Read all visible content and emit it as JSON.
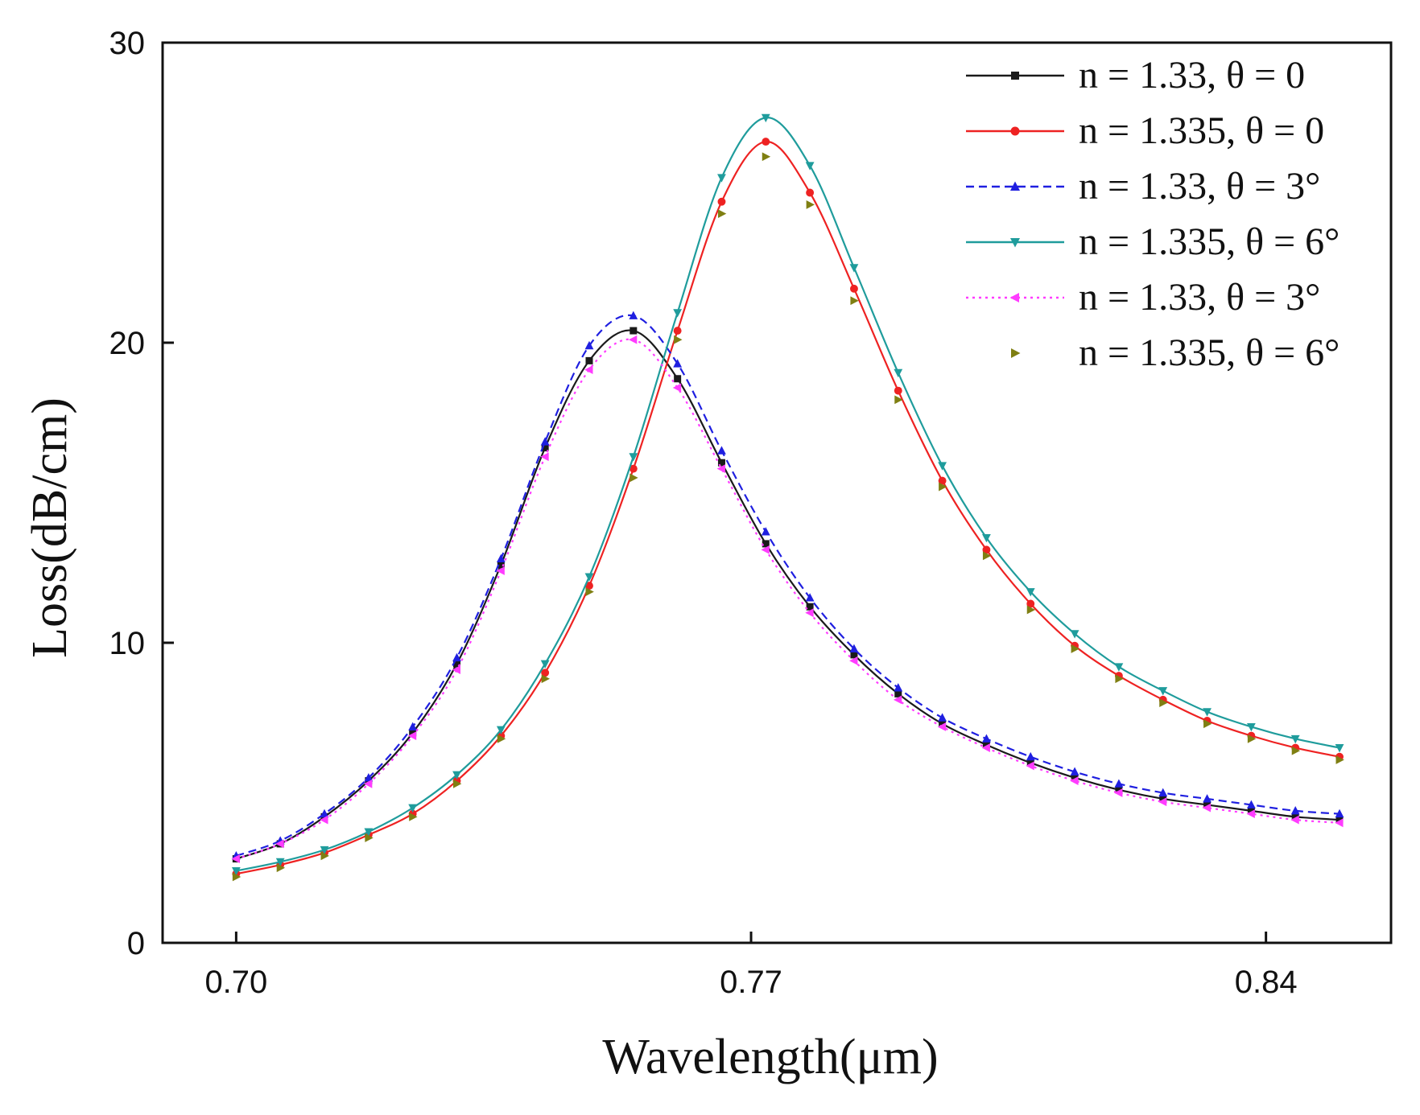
{
  "chart_data": {
    "type": "line",
    "title": "",
    "xlabel": "Wavelength(μm)",
    "ylabel": "Loss(dB/cm)",
    "xlim": [
      0.69,
      0.857
    ],
    "ylim": [
      0,
      30
    ],
    "x_ticks": [
      0.7,
      0.77,
      0.84
    ],
    "x_tick_labels": [
      "0.70",
      "0.77",
      "0.84"
    ],
    "y_ticks": [
      0,
      10,
      20,
      30
    ],
    "y_tick_labels": [
      "0",
      "10",
      "20",
      "30"
    ],
    "grid": false,
    "legend_position": "top-right",
    "x": [
      0.7,
      0.706,
      0.712,
      0.718,
      0.724,
      0.73,
      0.736,
      0.742,
      0.748,
      0.754,
      0.76,
      0.766,
      0.772,
      0.778,
      0.784,
      0.79,
      0.796,
      0.802,
      0.808,
      0.814,
      0.82,
      0.826,
      0.832,
      0.838,
      0.844,
      0.85
    ],
    "series": [
      {
        "name": "n = 1.33, θ = 0",
        "color": "#1a1a1a",
        "marker": "square",
        "line": "solid",
        "values": [
          2.8,
          3.3,
          4.2,
          5.4,
          7.0,
          9.3,
          12.6,
          16.5,
          19.4,
          20.4,
          18.8,
          16.0,
          13.3,
          11.2,
          9.6,
          8.3,
          7.3,
          6.6,
          6.0,
          5.5,
          5.1,
          4.8,
          4.6,
          4.4,
          4.2,
          4.1
        ]
      },
      {
        "name": "n = 1.335, θ = 0",
        "color": "#ee2222",
        "marker": "circle",
        "line": "solid",
        "values": [
          2.3,
          2.6,
          3.0,
          3.6,
          4.3,
          5.4,
          6.9,
          9.0,
          11.9,
          15.8,
          20.4,
          24.7,
          26.7,
          25.0,
          21.8,
          18.4,
          15.4,
          13.1,
          11.3,
          9.9,
          8.9,
          8.1,
          7.4,
          6.9,
          6.5,
          6.2
        ]
      },
      {
        "name": "n = 1.33, θ = 3°",
        "color": "#1f1fe0",
        "marker": "triangle-up",
        "line": "dash",
        "values": [
          2.9,
          3.4,
          4.3,
          5.5,
          7.2,
          9.5,
          12.8,
          16.7,
          19.9,
          20.9,
          19.3,
          16.4,
          13.7,
          11.5,
          9.8,
          8.5,
          7.5,
          6.8,
          6.2,
          5.7,
          5.3,
          5.0,
          4.8,
          4.6,
          4.4,
          4.3
        ]
      },
      {
        "name": "n = 1.335, θ = 6°",
        "color": "#1f9c9c",
        "marker": "triangle-down",
        "line": "solid",
        "values": [
          2.4,
          2.7,
          3.1,
          3.7,
          4.5,
          5.6,
          7.1,
          9.3,
          12.2,
          16.2,
          21.0,
          25.5,
          27.5,
          25.9,
          22.5,
          19.0,
          15.9,
          13.5,
          11.7,
          10.3,
          9.2,
          8.4,
          7.7,
          7.2,
          6.8,
          6.5
        ]
      },
      {
        "name": "n = 1.33, θ = 3°",
        "color": "#ff3cff",
        "marker": "triangle-left",
        "line": "dot",
        "values": [
          2.8,
          3.3,
          4.1,
          5.3,
          6.9,
          9.1,
          12.4,
          16.2,
          19.1,
          20.1,
          18.5,
          15.8,
          13.1,
          11.0,
          9.4,
          8.1,
          7.2,
          6.5,
          5.9,
          5.4,
          5.0,
          4.7,
          4.5,
          4.3,
          4.1,
          4.0
        ]
      },
      {
        "name": "n = 1.335, θ = 6°",
        "color": "#7f7f12",
        "marker": "triangle-right",
        "line": "none",
        "values": [
          2.2,
          2.5,
          2.9,
          3.5,
          4.2,
          5.3,
          6.8,
          8.8,
          11.7,
          15.5,
          20.1,
          24.3,
          26.2,
          24.6,
          21.4,
          18.1,
          15.2,
          12.9,
          11.1,
          9.8,
          8.8,
          8.0,
          7.3,
          6.8,
          6.4,
          6.1
        ]
      }
    ]
  }
}
